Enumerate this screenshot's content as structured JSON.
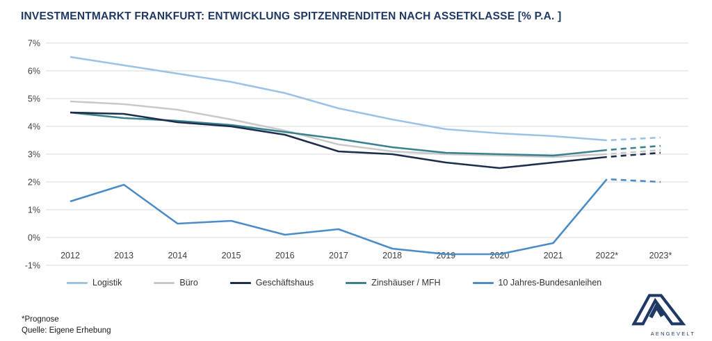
{
  "title": "INVESTMENTMARKT FRANKFURT: ENTWICKLUNG SPITZENRENDITEN NACH ASSETKLASSE [% P.A. ]",
  "footnotes": {
    "prognose": "*Prognose",
    "quelle": "Quelle: Eigene Erhebung"
  },
  "logo": {
    "text": "AENGEVELT"
  },
  "colors": {
    "title": "#1f3864",
    "grid": "#d9d9d9",
    "axis_text": "#3f3f3f",
    "legend_text": "#333333",
    "logo": "#1f3864"
  },
  "chart_data": {
    "type": "line",
    "categories": [
      "2012",
      "2013",
      "2014",
      "2015",
      "2016",
      "2017",
      "2018",
      "2019",
      "2020",
      "2021",
      "2022*",
      "2023*"
    ],
    "series": [
      {
        "name": "Logistik",
        "color": "#9cc2e5",
        "values": [
          6.5,
          6.2,
          5.9,
          5.6,
          5.2,
          4.65,
          4.25,
          3.9,
          3.75,
          3.65,
          3.5,
          3.6
        ]
      },
      {
        "name": "Büro",
        "color": "#c9c9c9",
        "values": [
          4.9,
          4.8,
          4.6,
          4.25,
          3.85,
          3.35,
          3.1,
          3.0,
          2.95,
          2.9,
          3.0,
          3.15
        ]
      },
      {
        "name": "Geschäftshaus",
        "color": "#1d2e4d",
        "values": [
          4.5,
          4.45,
          4.15,
          4.0,
          3.7,
          3.1,
          3.0,
          2.7,
          2.5,
          2.7,
          2.9,
          3.05
        ]
      },
      {
        "name": "Zinshäuser / MFH",
        "color": "#3a8190",
        "values": [
          4.5,
          4.3,
          4.2,
          4.05,
          3.8,
          3.55,
          3.25,
          3.05,
          3.0,
          2.95,
          3.15,
          3.3
        ]
      },
      {
        "name": "10 Jahres-Bundesanleihen",
        "color": "#4b8bc8",
        "values": [
          1.3,
          1.9,
          0.5,
          0.6,
          0.1,
          0.3,
          -0.4,
          -0.6,
          -0.6,
          -0.2,
          2.1,
          2.0
        ]
      }
    ],
    "ylim": [
      -1,
      7
    ],
    "ytick_step": 1,
    "ytick_suffix": "%",
    "grid": "horizontal",
    "legend_position": "bottom",
    "forecast_from_index": 10
  }
}
